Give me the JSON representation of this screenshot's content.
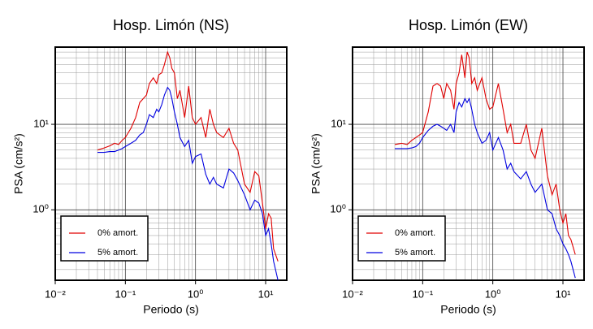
{
  "chart_data": [
    {
      "type": "line",
      "title": "Hosp. Limón (NS)",
      "x_label": "Periodo (s)",
      "y_label": "PSA (cm/s²)",
      "log_x": true,
      "log_y": true,
      "grid": true,
      "legend": "lower left",
      "xlim": [
        0.01,
        20
      ],
      "ylim": [
        0.15,
        80
      ],
      "xticks": [
        {
          "value": 0.01,
          "label": "10⁻²"
        },
        {
          "value": 0.1,
          "label": "10⁻¹"
        },
        {
          "value": 1,
          "label": "10⁰"
        },
        {
          "value": 10,
          "label": "10¹"
        }
      ],
      "yticks": [
        {
          "value": 1,
          "label": "10⁰"
        },
        {
          "value": 10,
          "label": "10¹"
        }
      ],
      "xminorticks": [
        0.02,
        0.03,
        0.04,
        0.05,
        0.06,
        0.07,
        0.08,
        0.09,
        0.2,
        0.3,
        0.4,
        0.5,
        0.6,
        0.7,
        0.8,
        0.9,
        2,
        3,
        4,
        5,
        6,
        7,
        8,
        9
      ],
      "yminorticks": [
        0.2,
        0.3,
        0.4,
        0.5,
        0.6,
        0.7,
        0.8,
        0.9,
        2,
        3,
        4,
        5,
        6,
        7,
        8,
        9,
        20,
        30,
        40,
        50,
        60,
        70,
        80
      ],
      "x": [
        0.04,
        0.05,
        0.06,
        0.07,
        0.08,
        0.09,
        0.1,
        0.12,
        0.14,
        0.16,
        0.18,
        0.2,
        0.22,
        0.25,
        0.28,
        0.3,
        0.33,
        0.36,
        0.4,
        0.43,
        0.46,
        0.5,
        0.55,
        0.6,
        0.7,
        0.8,
        0.9,
        1.0,
        1.2,
        1.4,
        1.6,
        1.8,
        2.0,
        2.5,
        3.0,
        3.5,
        4.0,
        5,
        6,
        7,
        8,
        9,
        10,
        11,
        12,
        13,
        15
      ],
      "series": [
        {
          "name": "0% amort.",
          "color": "#e00000",
          "values": [
            5,
            5.3,
            5.6,
            6,
            5.8,
            6.5,
            7,
            9,
            12,
            18,
            20,
            22,
            30,
            35,
            30,
            38,
            40,
            50,
            70,
            60,
            45,
            40,
            20,
            25,
            12,
            28,
            12,
            10,
            12,
            7,
            15,
            10,
            8,
            7,
            9,
            6,
            5,
            2,
            1.6,
            2.8,
            2.5,
            1.2,
            0.6,
            0.9,
            0.8,
            0.35,
            0.25
          ]
        },
        {
          "name": "5% amort.",
          "color": "#0000e0",
          "values": [
            4.7,
            4.7,
            4.8,
            4.8,
            5,
            5.2,
            5.5,
            6,
            6.5,
            7.5,
            8,
            10,
            13,
            12,
            15,
            14,
            17,
            22,
            27,
            25,
            20,
            14,
            10,
            7,
            5.5,
            6.5,
            3.5,
            4.2,
            4.5,
            2.6,
            2,
            2.4,
            2,
            1.8,
            3,
            2.7,
            2.2,
            1.5,
            1,
            1.3,
            1.2,
            0.9,
            0.5,
            0.6,
            0.4,
            0.25,
            0.15
          ]
        }
      ]
    },
    {
      "type": "line",
      "title": "Hosp. Limón (EW)",
      "x_label": "Periodo (s)",
      "y_label": "PSA (cm/s²)",
      "log_x": true,
      "log_y": true,
      "grid": true,
      "legend": "lower left",
      "xlim": [
        0.01,
        20
      ],
      "ylim": [
        0.15,
        80
      ],
      "xticks": [
        {
          "value": 0.01,
          "label": "10⁻²"
        },
        {
          "value": 0.1,
          "label": "10⁻¹"
        },
        {
          "value": 1,
          "label": "10⁰"
        },
        {
          "value": 10,
          "label": "10¹"
        }
      ],
      "yticks": [
        {
          "value": 1,
          "label": "10⁰"
        },
        {
          "value": 10,
          "label": "10¹"
        }
      ],
      "xminorticks": [
        0.02,
        0.03,
        0.04,
        0.05,
        0.06,
        0.07,
        0.08,
        0.09,
        0.2,
        0.3,
        0.4,
        0.5,
        0.6,
        0.7,
        0.8,
        0.9,
        2,
        3,
        4,
        5,
        6,
        7,
        8,
        9
      ],
      "yminorticks": [
        0.2,
        0.3,
        0.4,
        0.5,
        0.6,
        0.7,
        0.8,
        0.9,
        2,
        3,
        4,
        5,
        6,
        7,
        8,
        9,
        20,
        30,
        40,
        50,
        60,
        70,
        80
      ],
      "x": [
        0.04,
        0.05,
        0.06,
        0.07,
        0.08,
        0.09,
        0.1,
        0.12,
        0.14,
        0.16,
        0.18,
        0.2,
        0.22,
        0.25,
        0.28,
        0.3,
        0.33,
        0.36,
        0.4,
        0.43,
        0.46,
        0.5,
        0.55,
        0.6,
        0.7,
        0.8,
        0.9,
        1.0,
        1.2,
        1.4,
        1.6,
        1.8,
        2.0,
        2.5,
        3.0,
        3.5,
        4.0,
        5,
        6,
        7,
        8,
        9,
        10,
        11,
        12,
        13,
        15
      ],
      "series": [
        {
          "name": "0% amort.",
          "color": "#e00000",
          "values": [
            5.8,
            6,
            5.8,
            6.5,
            7,
            7.5,
            8,
            14,
            28,
            30,
            28,
            20,
            30,
            25,
            15,
            30,
            40,
            65,
            35,
            70,
            60,
            30,
            35,
            25,
            35,
            20,
            15,
            16,
            30,
            15,
            8,
            10,
            6,
            6,
            10,
            5,
            4,
            9,
            2.5,
            1.5,
            2,
            1,
            0.7,
            0.9,
            0.5,
            0.45,
            0.3
          ]
        },
        {
          "name": "5% amort.",
          "color": "#0000e0",
          "values": [
            5.2,
            5.2,
            5.2,
            5.3,
            5.5,
            6,
            7,
            8.5,
            9.5,
            10,
            9.5,
            9,
            8.5,
            10,
            8,
            14,
            18,
            16,
            20,
            18,
            20,
            15,
            10,
            8,
            6,
            6.5,
            8,
            5,
            7,
            5,
            3,
            3.5,
            2.8,
            2.3,
            2.8,
            2,
            1.6,
            2,
            1,
            0.9,
            0.6,
            0.5,
            0.4,
            0.35,
            0.3,
            0.25,
            0.16
          ]
        }
      ]
    }
  ]
}
